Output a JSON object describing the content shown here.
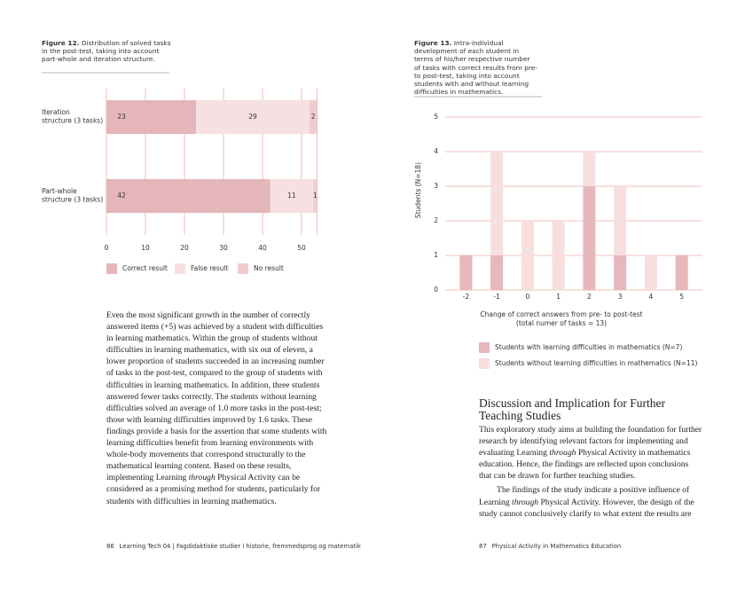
{
  "chart_data": [
    {
      "type": "bar",
      "orientation": "horizontal",
      "stacked": true,
      "figure_label": "Figure 12.",
      "title": "Distribution of solved tasks in the post-test, taking into account part-whole and iteration structure.",
      "categories": [
        "Iteration structure (3 tasks)",
        "Part-whole structure (3 tasks)"
      ],
      "series": [
        {
          "name": "Correct result",
          "color": "#e5b6b9",
          "values": [
            23,
            42
          ]
        },
        {
          "name": "False result",
          "color": "#f6e0e1",
          "values": [
            29,
            11
          ]
        },
        {
          "name": "No result",
          "color": "#efcdcf",
          "values": [
            2,
            1
          ]
        }
      ],
      "xlim": [
        0,
        54
      ],
      "xticks": [
        0,
        10,
        20,
        30,
        40,
        50
      ],
      "grid": true
    },
    {
      "type": "bar",
      "orientation": "vertical",
      "stacked": true,
      "figure_label": "Figure 13.",
      "title": "Intra-individual development of each student in terms of his/her respective number of tasks with correct results from pre- to post-test, taking into account students with and without learning difficulties in mathematics.",
      "x": [
        -2,
        -1,
        0,
        1,
        2,
        3,
        4,
        5
      ],
      "series": [
        {
          "name": "Students with learning difficulties in mathematics (N=7)",
          "color": "#e6b8bb",
          "values": [
            1,
            1,
            0,
            0,
            3,
            1,
            0,
            1
          ]
        },
        {
          "name": "Students without learning difficulties in mathematics (N=11)",
          "color": "#f7dfe0",
          "values": [
            0,
            3,
            2,
            2,
            1,
            2,
            1,
            0
          ]
        }
      ],
      "ylabel": "Students (N=18)",
      "xlabel": [
        "Change of correct answers from pre- to post-test",
        "(total numer of tasks = 13)"
      ],
      "ylim": [
        0,
        5
      ],
      "yticks": [
        0,
        1,
        2,
        3,
        4,
        5
      ],
      "grid": true
    }
  ],
  "left_page": {
    "body": [
      "Even the most significant growth in the number of correctly answered items (+5) was achieved by a student with difficulties in learning mathematics. Within the group of students without difficulties in learning mathematics, with six out of eleven, a lower proportion of students succeeded in an increasing number of tasks in the post-test, compared to the group of students with difficulties in learning mathematics. In addition, three students answered fewer tasks correctly. The students without learning difficulties solved an average of 1.0 more tasks in the post-test; those with learning difficulties improved by 1.6 tasks. These findings provide a basis for the assertion that some students with learning difficulties benefit from learning environments with whole-body movements that correspond structurally to the mathematical learning content. Based on these results, implementing Learning ",
      "through",
      " Physical Activity can be considered as a promising method for students, particularly for students with difficulties in learning mathematics."
    ],
    "footer": {
      "page": "86",
      "text": "Learning Tech 04 | Fagdidaktiske studier i historie, fremmedsprog og matematik"
    }
  },
  "right_page": {
    "heading": "Discussion and Implication for Further Teaching Studies",
    "paragraphs": [
      [
        "This exploratory study aims at building the foundation for further research by identifying relevant factors for implementing and evaluating Learning ",
        "through",
        " Physical Activity in mathematics education. Hence, the findings are reflected upon conclusions that can be drawn for further teaching studies."
      ],
      [
        "The findings of the study indicate a positive influence of Learning ",
        "through",
        " Physical Activity. However, the design of the study cannot conclusively clarify to what extent the results are"
      ]
    ],
    "footer": {
      "page": "87",
      "text": "Physical Activity in Mathematics Education"
    }
  }
}
